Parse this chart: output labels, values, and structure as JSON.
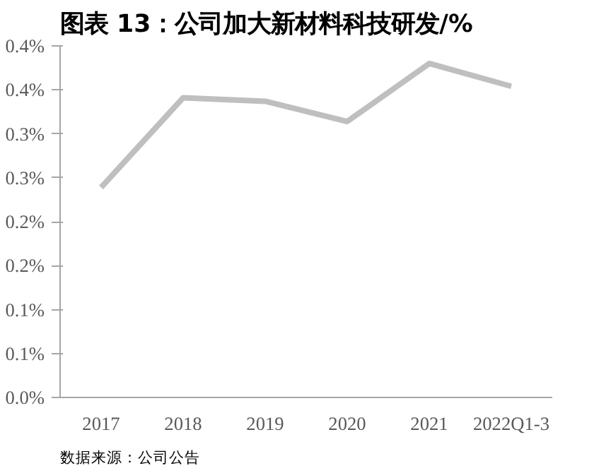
{
  "chart_data": {
    "type": "line",
    "title": "图表 13：公司加大新材料科技研发/%",
    "categories": [
      "2017",
      "2018",
      "2019",
      "2020",
      "2021",
      "2022Q1-3"
    ],
    "series": [
      {
        "color": "#bfbfbf",
        "values": [
          0.239,
          0.341,
          0.337,
          0.314,
          0.38,
          0.354
        ]
      }
    ],
    "ylim": [
      0,
      0.4
    ],
    "yticks": [
      {
        "value": 0,
        "label": "0.0%"
      },
      {
        "value": 0.05,
        "label": "0.1%"
      },
      {
        "value": 0.1,
        "label": "0.1%"
      },
      {
        "value": 0.15,
        "label": "0.2%"
      },
      {
        "value": 0.2,
        "label": "0.2%"
      },
      {
        "value": 0.25,
        "label": "0.3%"
      },
      {
        "value": 0.3,
        "label": "0.3%"
      },
      {
        "value": 0.35,
        "label": "0.4%"
      },
      {
        "value": 0.4,
        "label": "0.4%"
      }
    ],
    "grid": false,
    "annotations": [
      "数据来源：公司公告"
    ]
  }
}
